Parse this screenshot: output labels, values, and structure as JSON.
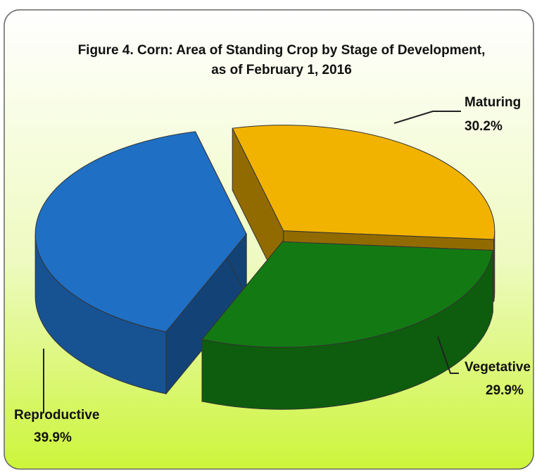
{
  "chart_data": {
    "type": "pie",
    "title": [
      "Figure 4. Corn:  Area of Standing Crop by Stage of Development,",
      "as of February 1, 2016"
    ],
    "categories": [
      "Maturing",
      "Vegetative",
      "Reproductive"
    ],
    "values": [
      30.2,
      29.9,
      39.9
    ],
    "value_labels": [
      "30.2%",
      "29.9%",
      "39.9%"
    ],
    "colors": [
      "#f2b300",
      "#137a13",
      "#1f6fc4"
    ]
  }
}
